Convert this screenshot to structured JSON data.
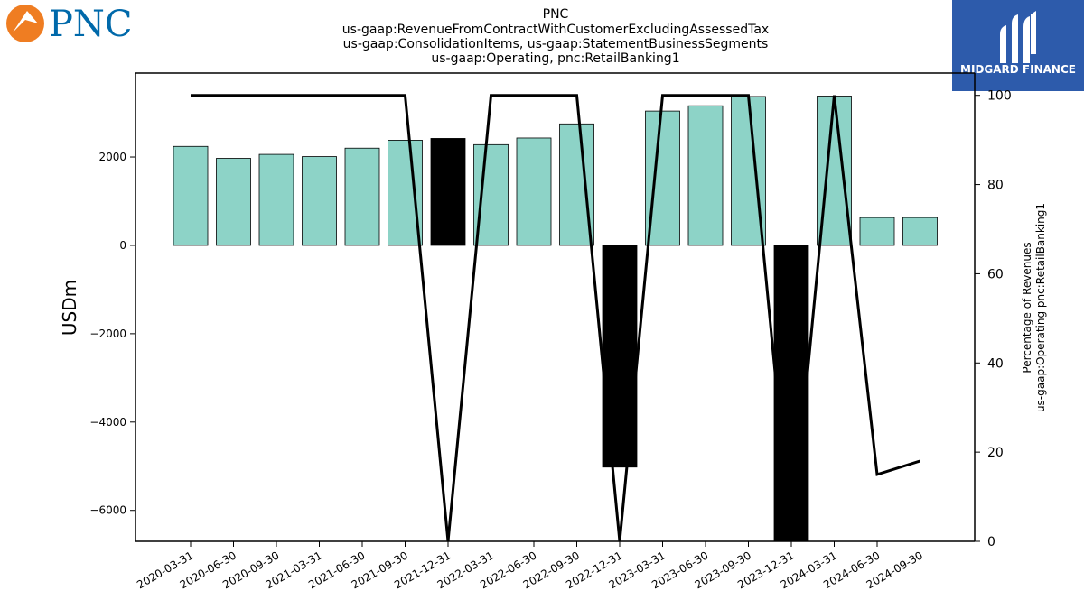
{
  "logos": {
    "left_text": "PNC",
    "left_color": "#0069aa",
    "left_mark_color": "#ef7d22",
    "right_text": "MIDGARD FINANCE",
    "right_bg": "#2d5bab"
  },
  "chart_data": {
    "type": "bar",
    "title_lines": [
      "PNC",
      "us-gaap:RevenueFromContractWithCustomerExcludingAssessedTax",
      "us-gaap:ConsolidationItems, us-gaap:StatementBusinessSegments",
      "us-gaap:Operating, pnc:RetailBanking1"
    ],
    "categories": [
      "2020-03-31",
      "2020-06-30",
      "2020-09-30",
      "2021-03-31",
      "2021-06-30",
      "2021-09-30",
      "2021-12-31",
      "2022-03-31",
      "2022-06-30",
      "2022-09-30",
      "2022-12-31",
      "2023-03-31",
      "2023-06-30",
      "2023-09-30",
      "2023-12-31",
      "2024-03-31",
      "2024-06-30",
      "2024-09-30"
    ],
    "series": [
      {
        "axis": "left",
        "kind": "bar",
        "values": [
          2240,
          1970,
          2060,
          2010,
          2200,
          2380,
          2420,
          2280,
          2430,
          2750,
          -5020,
          3040,
          3160,
          3370,
          -6700,
          3380,
          630,
          630
        ],
        "colors": [
          "#8dd3c7",
          "#8dd3c7",
          "#8dd3c7",
          "#8dd3c7",
          "#8dd3c7",
          "#8dd3c7",
          "#000000",
          "#8dd3c7",
          "#8dd3c7",
          "#8dd3c7",
          "#000000",
          "#8dd3c7",
          "#8dd3c7",
          "#8dd3c7",
          "#000000",
          "#8dd3c7",
          "#8dd3c7",
          "#8dd3c7"
        ]
      },
      {
        "axis": "right",
        "kind": "line",
        "color": "#000000",
        "values": [
          100,
          null,
          null,
          null,
          null,
          100,
          0,
          100,
          null,
          100,
          0,
          100,
          null,
          100,
          0,
          100,
          15,
          18
        ]
      }
    ],
    "ylabel": "USDm",
    "y2label": [
      "Percentage of Revenues",
      "us-gaap:Operating pnc:RetailBanking1"
    ],
    "ylim": [
      -6700,
      3900
    ],
    "y2lim": [
      0,
      105
    ],
    "yticks": [
      2000,
      0,
      -2000,
      -4000,
      -6000
    ],
    "ytick_labels": [
      "2000",
      "0",
      "−2000",
      "−4000",
      "−6000"
    ],
    "y2ticks": [
      100,
      80,
      60,
      40,
      20,
      0
    ],
    "y2tick_labels": [
      "100",
      "80",
      "60",
      "40",
      "20",
      "0"
    ],
    "grid": false
  }
}
